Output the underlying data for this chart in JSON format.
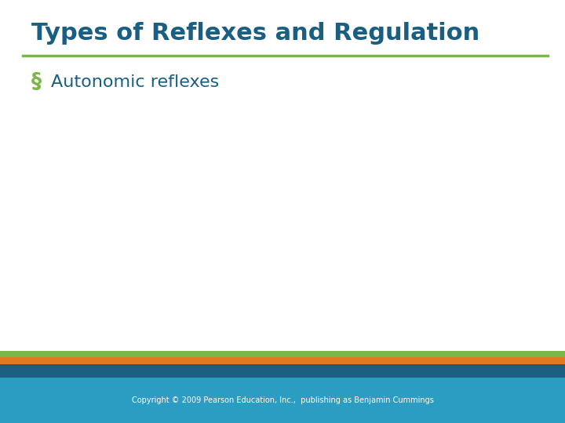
{
  "title": "Types of Reflexes and Regulation",
  "title_color": "#1a5e82",
  "title_fontsize": 22,
  "title_bold": true,
  "bullet_text": "Autonomic reflexes",
  "bullet_color": "#1a5e82",
  "bullet_fontsize": 16,
  "bullet_marker_color": "#7ab648",
  "background_color": "#ffffff",
  "title_underline_color": "#7ab648",
  "footer_bg_color": "#2b9cc2",
  "footer_text": "Copyright © 2009 Pearson Education, Inc.,  publishing as Benjamin Cummings",
  "footer_text_color": "#ffffff",
  "footer_fontsize": 7,
  "stripe_colors": [
    "#7ab648",
    "#e07820",
    "#1a5e82"
  ]
}
